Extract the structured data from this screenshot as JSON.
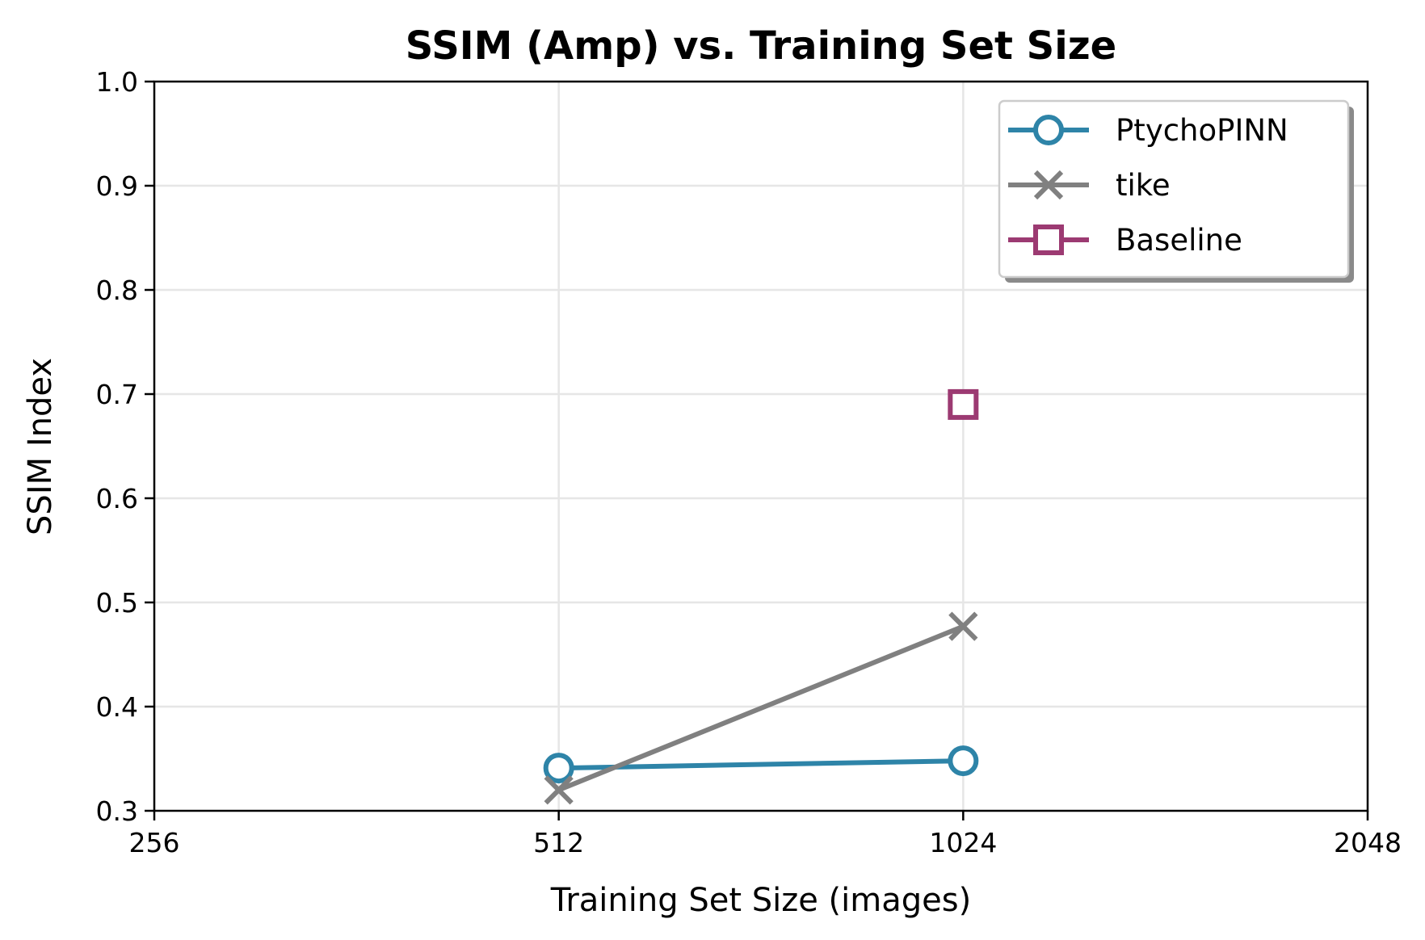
{
  "chart_data": {
    "type": "line",
    "title": "SSIM (Amp) vs. Training Set Size",
    "xlabel": "Training Set Size (images)",
    "ylabel": "SSIM Index",
    "x_scale": "log2",
    "xlim": [
      256,
      2048
    ],
    "ylim": [
      0.3,
      1.0
    ],
    "xticks": [
      256,
      512,
      1024,
      2048
    ],
    "xtick_labels": [
      "256",
      "512",
      "1024",
      "2048"
    ],
    "yticks": [
      0.3,
      0.4,
      0.5,
      0.6,
      0.7,
      0.8,
      0.9,
      1.0
    ],
    "ytick_labels": [
      "0.3",
      "0.4",
      "0.5",
      "0.6",
      "0.7",
      "0.8",
      "0.9",
      "1.0"
    ],
    "grid": true,
    "legend_position": "top-right",
    "series": [
      {
        "name": "PtychoPINN",
        "color": "#2e84a8",
        "marker": "circle",
        "x": [
          512,
          1024
        ],
        "y": [
          0.341,
          0.348
        ]
      },
      {
        "name": "tike",
        "color": "#808080",
        "marker": "x",
        "x": [
          512,
          1024
        ],
        "y": [
          0.32,
          0.477
        ]
      },
      {
        "name": "Baseline",
        "color": "#9c3a72",
        "marker": "square",
        "x": [
          1024
        ],
        "y": [
          0.69
        ]
      }
    ]
  }
}
